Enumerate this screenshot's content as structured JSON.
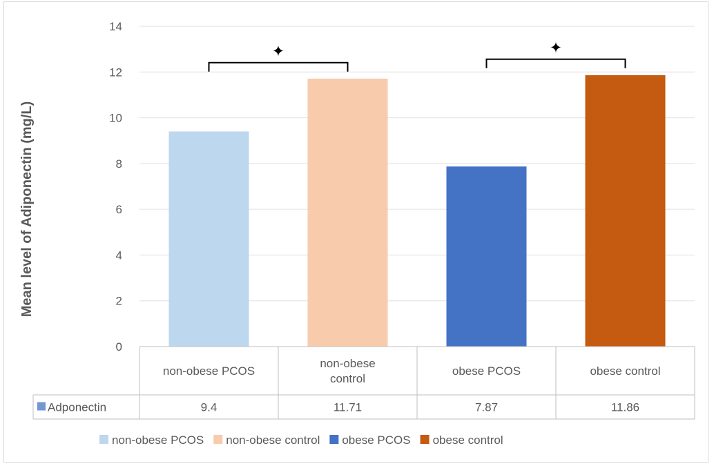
{
  "chart_data": {
    "type": "bar",
    "ylabel": "Mean level of Adiponectin (mg/L)",
    "ylim": [
      0,
      14
    ],
    "yticks": [
      0,
      2,
      4,
      6,
      8,
      10,
      12,
      14
    ],
    "grid": true,
    "categories": [
      "non-obese PCOS",
      "non-obese control",
      "obese PCOS",
      "obese control"
    ],
    "category_lines": [
      [
        "non-obese PCOS"
      ],
      [
        "non-obese",
        "control"
      ],
      [
        "obese PCOS"
      ],
      [
        "obese control"
      ]
    ],
    "colors": [
      "#bdd7ee",
      "#f8cbad",
      "#4472c4",
      "#c55a11"
    ],
    "series": [
      {
        "name": "Adponectin",
        "values": [
          9.4,
          11.71,
          7.87,
          11.86
        ],
        "labels": [
          "9.4",
          "11.71",
          "7.87",
          "11.86"
        ]
      }
    ],
    "data_table": true,
    "legend_position": "bottom",
    "annotations": [
      {
        "symbol": "✦",
        "between": [
          0,
          1
        ]
      },
      {
        "symbol": "✦",
        "between": [
          2,
          3
        ]
      }
    ]
  }
}
